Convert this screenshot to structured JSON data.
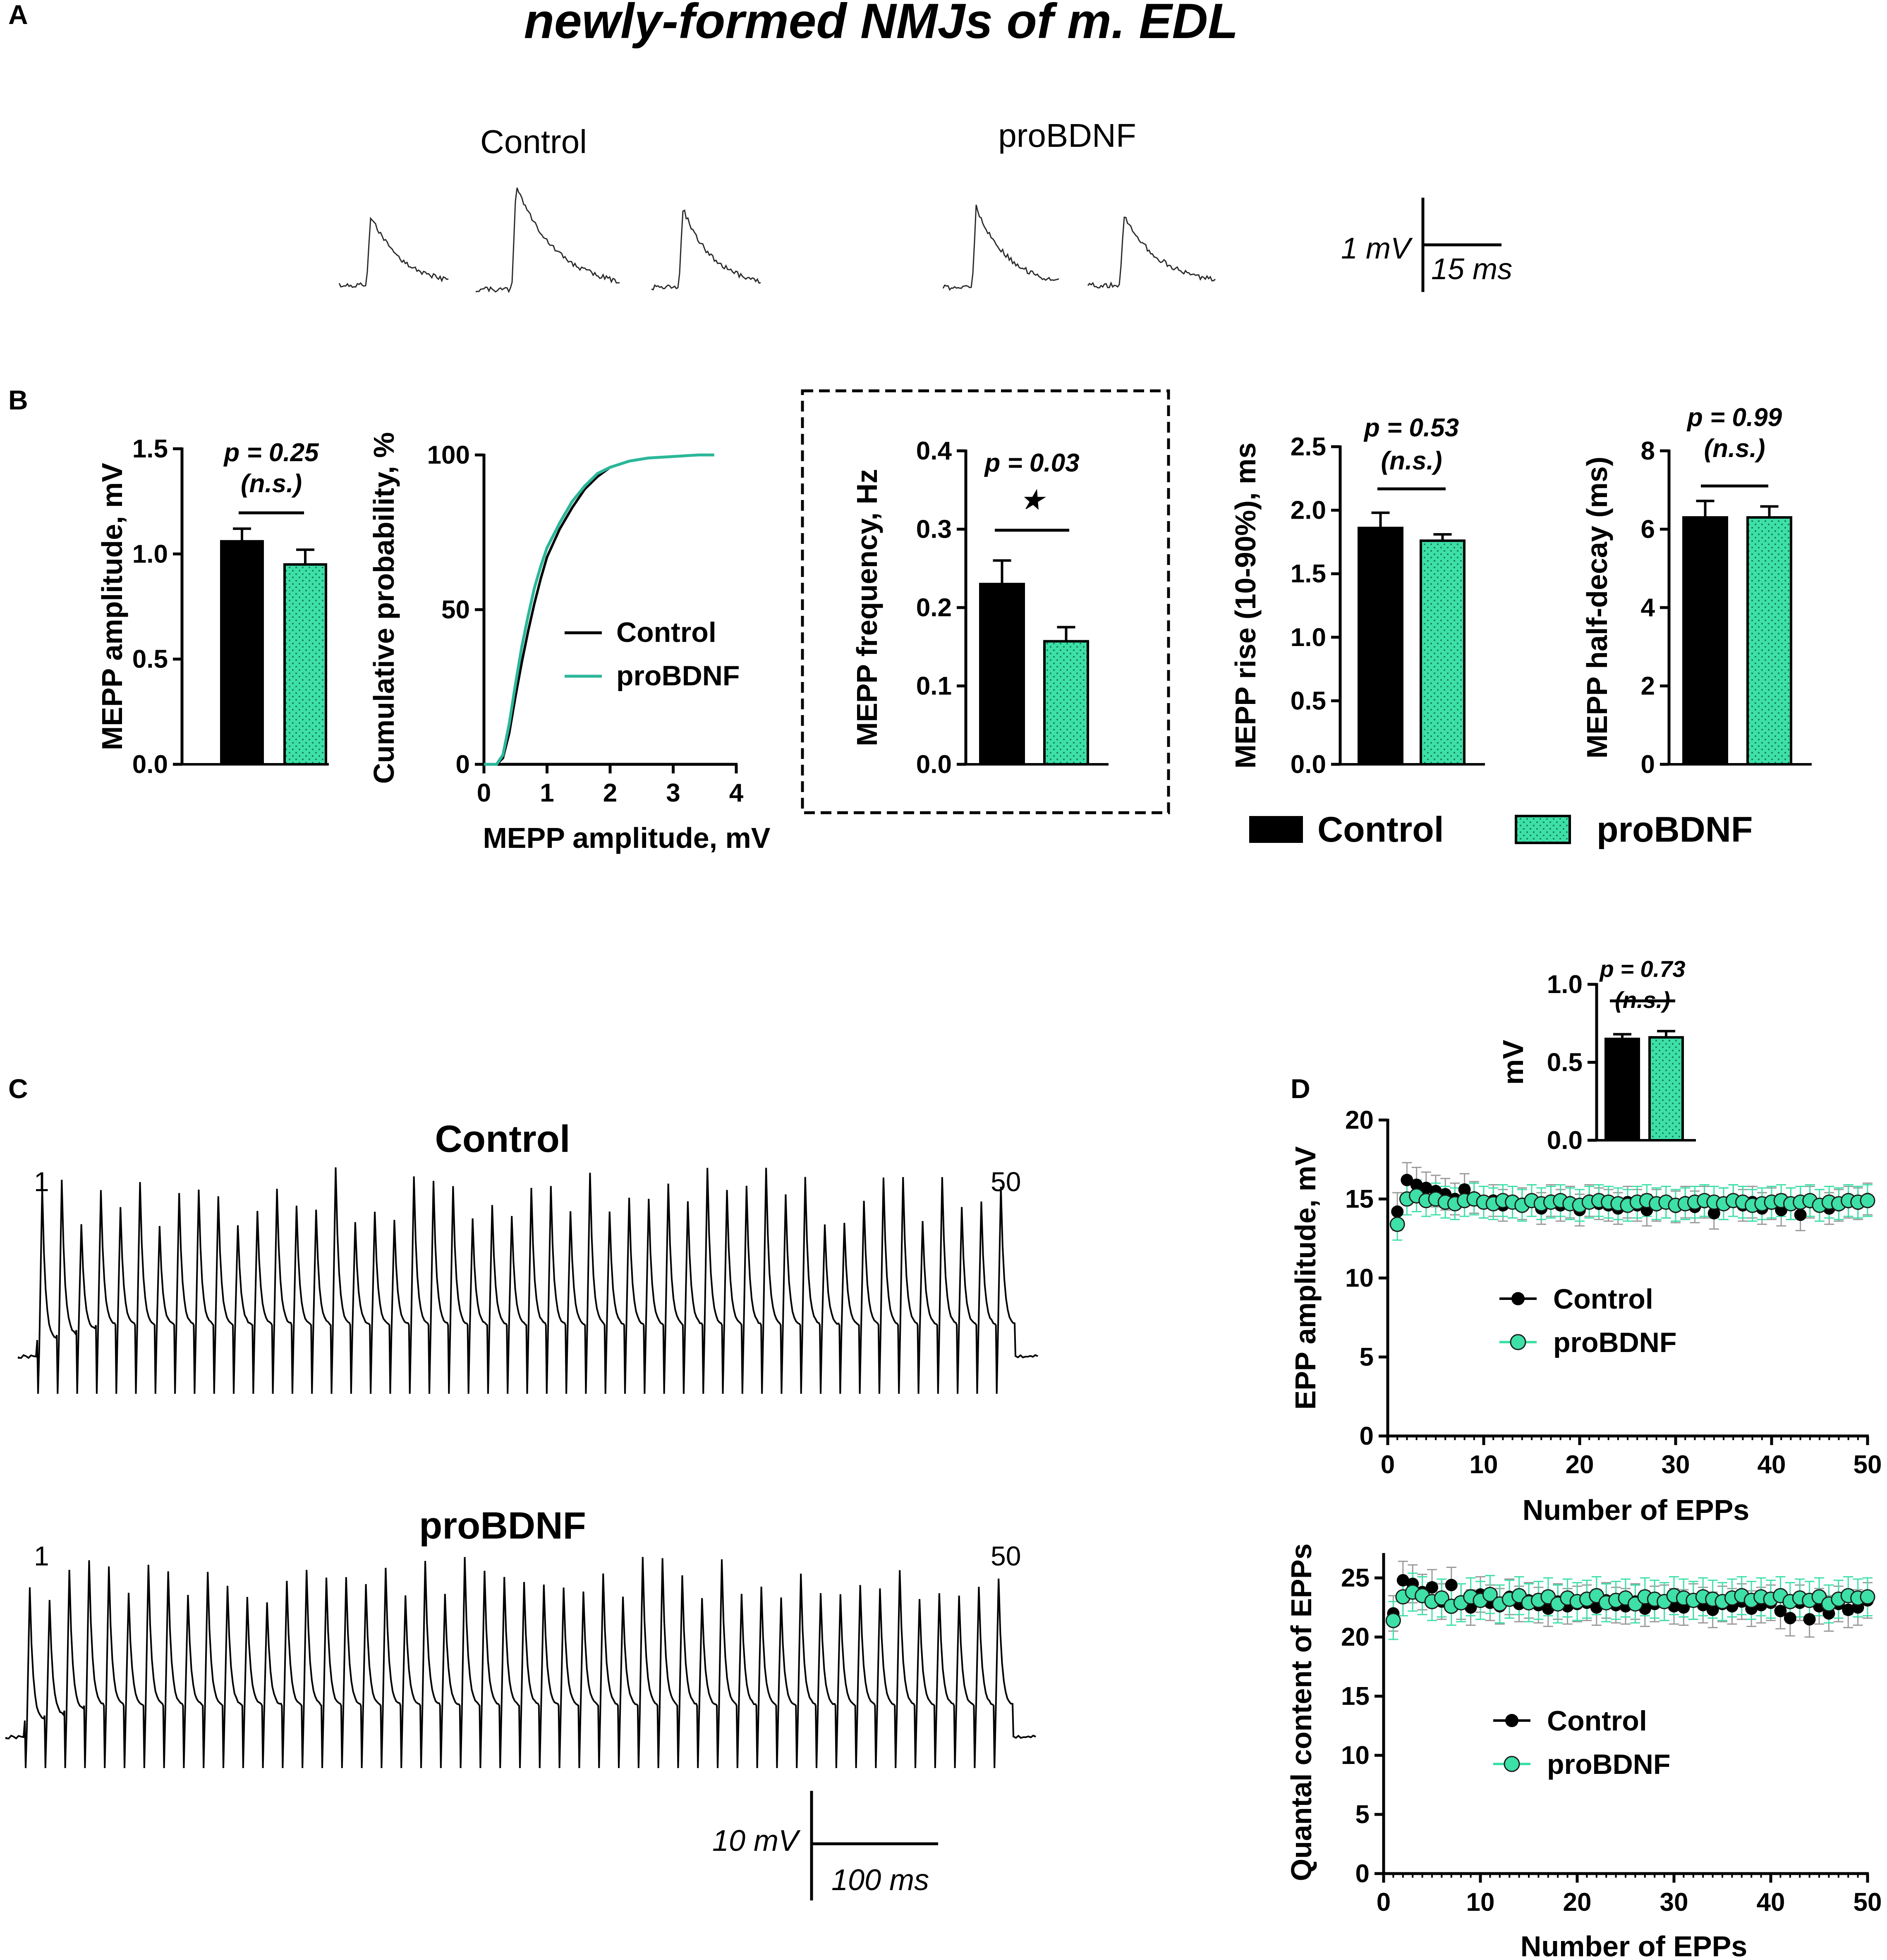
{
  "figure_title": "newly-formed NMJs of m. EDL",
  "panel_letters": [
    "A",
    "B",
    "C",
    "D"
  ],
  "colors": {
    "control": "#000000",
    "probdnf": "#3de0a6",
    "probdnf_line": "#2bb79a",
    "error_gray": "#9a9a9a"
  },
  "panel_a": {
    "labels": [
      "Control",
      "proBDNF"
    ],
    "scale_bar": {
      "y_label": "1 mV",
      "x_label": "15 ms"
    }
  },
  "panel_c": {
    "labels": [
      "Control",
      "proBDNF"
    ],
    "first_label": "1",
    "last_label": "50",
    "scale_bar": {
      "y_label": "10 mV",
      "x_label": "100 ms"
    }
  },
  "legend_b": {
    "control": "Control",
    "probdnf": "proBDNF"
  },
  "chart_data": [
    {
      "id": "mepp_amplitude",
      "type": "bar",
      "ylabel": "MEPP amplitude, mV",
      "ylim": [
        0,
        1.5
      ],
      "yticks": [
        "0.0",
        "0.5",
        "1.0",
        "1.5"
      ],
      "categories": [
        "Control",
        "proBDNF"
      ],
      "values": [
        1.06,
        0.95
      ],
      "errors": [
        0.06,
        0.07
      ],
      "p_value": "p = 0.25",
      "significance": "(n.s.)"
    },
    {
      "id": "cumulative_probability",
      "type": "line",
      "xlabel": "MEPP amplitude, mV",
      "ylabel": "Cumulative probability, %",
      "xlim": [
        0,
        4
      ],
      "ylim": [
        0,
        100
      ],
      "xticks": [
        "0",
        "1",
        "2",
        "3",
        "4"
      ],
      "yticks": [
        "0",
        "50",
        "100"
      ],
      "series": [
        {
          "name": "Control",
          "x": [
            0,
            0.2,
            0.3,
            0.4,
            0.5,
            0.6,
            0.7,
            0.8,
            0.9,
            1.0,
            1.2,
            1.4,
            1.6,
            1.8,
            2.0,
            2.3,
            2.6,
            3.0,
            3.4,
            3.65
          ],
          "y": [
            0,
            0,
            2,
            10,
            22,
            33,
            43,
            52,
            60,
            67,
            76,
            83,
            89,
            93,
            96,
            98,
            99,
            99.5,
            100,
            100
          ]
        },
        {
          "name": "proBDNF",
          "x": [
            0,
            0.2,
            0.3,
            0.4,
            0.5,
            0.6,
            0.7,
            0.8,
            0.9,
            1.0,
            1.2,
            1.4,
            1.6,
            1.8,
            2.0,
            2.3,
            2.6,
            3.0,
            3.4,
            3.65
          ],
          "y": [
            0,
            0,
            3,
            13,
            26,
            38,
            48,
            57,
            64,
            70,
            78,
            85,
            90,
            94,
            96,
            98,
            99,
            99.5,
            100,
            100
          ]
        }
      ],
      "legend": [
        "Control",
        "proBDNF"
      ]
    },
    {
      "id": "mepp_frequency",
      "type": "bar",
      "ylabel": "MEPP frequency, Hz",
      "ylim": [
        0,
        0.4
      ],
      "yticks": [
        "0.0",
        "0.1",
        "0.2",
        "0.3",
        "0.4"
      ],
      "categories": [
        "Control",
        "proBDNF"
      ],
      "values": [
        0.23,
        0.157
      ],
      "errors": [
        0.03,
        0.018
      ],
      "p_value": "p = 0.03",
      "significance": "★"
    },
    {
      "id": "mepp_rise",
      "type": "bar",
      "ylabel": "MEPP rise (10-90%), ms",
      "ylim": [
        0,
        2.5
      ],
      "yticks": [
        "0.0",
        "0.5",
        "1.0",
        "1.5",
        "2.0",
        "2.5"
      ],
      "categories": [
        "Control",
        "proBDNF"
      ],
      "values": [
        1.86,
        1.76
      ],
      "errors": [
        0.12,
        0.05
      ],
      "p_value": "p = 0.53",
      "significance": "(n.s.)"
    },
    {
      "id": "mepp_half_decay",
      "type": "bar",
      "ylabel": "MEPP half-decay (ms)",
      "ylim": [
        0,
        8
      ],
      "yticks": [
        "0",
        "2",
        "4",
        "6",
        "8"
      ],
      "categories": [
        "Control",
        "proBDNF"
      ],
      "values": [
        6.3,
        6.3
      ],
      "errors": [
        0.42,
        0.28
      ],
      "p_value": "p = 0.99",
      "significance": "(n.s.)"
    },
    {
      "id": "epp_amplitude",
      "type": "scatter",
      "xlabel": "Number of EPPs",
      "ylabel": "EPP amplitude, mV",
      "xlim": [
        0,
        50
      ],
      "ylim": [
        0,
        20
      ],
      "xticks": [
        "0",
        "10",
        "20",
        "30",
        "40",
        "50"
      ],
      "yticks": [
        "0",
        "5",
        "10",
        "15",
        "20"
      ],
      "series": [
        {
          "name": "Control",
          "y": [
            14.2,
            16.2,
            15.9,
            15.7,
            15.5,
            15.3,
            15.0,
            15.6,
            15.1,
            14.8,
            14.9,
            14.6,
            14.8,
            14.7,
            14.9,
            14.4,
            14.9,
            14.6,
            14.8,
            14.3,
            14.9,
            14.7,
            14.6,
            14.4,
            14.8,
            14.6,
            14.3,
            14.6,
            14.8,
            14.5,
            14.8,
            14.5,
            14.8,
            14.1,
            14.7,
            14.9,
            14.6,
            14.8,
            14.4,
            14.7,
            14.3,
            14.7,
            14.0,
            14.8,
            14.6,
            14.4,
            14.6,
            14.8,
            14.7,
            15.0
          ],
          "errors": [
            1.2,
            1.1,
            1.1,
            1.0,
            1.0,
            1.0,
            1.0,
            1.0,
            1.0,
            1.0,
            1.0,
            1.0,
            1.0,
            1.0,
            1.0,
            1.0,
            1.0,
            1.0,
            1.0,
            1.0,
            1.0,
            1.0,
            1.0,
            1.0,
            1.0,
            1.0,
            1.0,
            1.0,
            1.0,
            1.0,
            1.0,
            1.0,
            1.0,
            1.0,
            1.0,
            1.0,
            1.0,
            1.0,
            1.0,
            1.0,
            1.0,
            1.0,
            1.0,
            1.0,
            1.0,
            1.0,
            1.0,
            1.0,
            1.0,
            1.0
          ]
        },
        {
          "name": "proBDNF",
          "y": [
            13.4,
            15.0,
            15.2,
            14.9,
            15.0,
            14.8,
            14.7,
            14.9,
            15.0,
            14.8,
            14.7,
            14.9,
            14.8,
            14.6,
            14.9,
            14.7,
            14.8,
            14.9,
            14.7,
            14.6,
            14.8,
            14.9,
            14.8,
            14.7,
            14.6,
            14.8,
            14.9,
            14.7,
            14.8,
            14.6,
            14.7,
            14.8,
            14.9,
            14.8,
            14.7,
            14.9,
            14.8,
            14.6,
            14.7,
            14.8,
            14.9,
            14.7,
            14.8,
            14.9,
            14.6,
            14.8,
            14.7,
            14.9,
            14.8,
            14.9
          ],
          "errors": [
            1.0,
            1.0,
            1.0,
            1.0,
            1.0,
            1.0,
            1.0,
            1.0,
            1.0,
            1.0,
            1.0,
            1.0,
            1.0,
            1.0,
            1.0,
            1.0,
            1.0,
            1.0,
            1.0,
            1.0,
            1.0,
            1.0,
            1.0,
            1.0,
            1.0,
            1.0,
            1.0,
            1.0,
            1.0,
            1.0,
            1.0,
            1.0,
            1.0,
            1.0,
            1.0,
            1.0,
            1.0,
            1.0,
            1.0,
            1.0,
            1.0,
            1.0,
            1.0,
            1.0,
            1.0,
            1.0,
            1.0,
            1.0,
            1.0,
            1.0
          ]
        }
      ],
      "legend": [
        "Control",
        "proBDNF"
      ]
    },
    {
      "id": "epp_amplitude_inset",
      "type": "bar",
      "ylabel": "mV",
      "ylim": [
        0,
        1.0
      ],
      "yticks": [
        "0.0",
        "0.5",
        "1.0"
      ],
      "categories": [
        "Control",
        "proBDNF"
      ],
      "values": [
        0.65,
        0.66
      ],
      "errors": [
        0.03,
        0.04
      ],
      "p_value": "p = 0.73",
      "significance": "(n.s.)"
    },
    {
      "id": "quantal_content",
      "type": "scatter",
      "xlabel": "Number of EPPs",
      "ylabel": "Quantal content of EPPs",
      "xlim": [
        0,
        50
      ],
      "ylim": [
        0,
        27
      ],
      "xticks": [
        "0",
        "10",
        "20",
        "30",
        "40",
        "50"
      ],
      "yticks": [
        "0",
        "5",
        "10",
        "15",
        "20",
        "25"
      ],
      "series": [
        {
          "name": "Control",
          "y": [
            22.0,
            24.8,
            24.5,
            23.8,
            24.2,
            23.0,
            24.4,
            23.0,
            22.5,
            23.6,
            22.9,
            22.6,
            23.4,
            22.8,
            23.1,
            22.7,
            22.4,
            23.0,
            22.6,
            22.8,
            22.9,
            22.5,
            23.1,
            22.7,
            22.6,
            23.0,
            22.4,
            22.8,
            22.9,
            22.6,
            22.5,
            23.0,
            22.7,
            22.3,
            22.8,
            22.6,
            23.0,
            22.4,
            22.7,
            22.9,
            22.2,
            21.6,
            22.9,
            21.5,
            22.6,
            22.0,
            22.8,
            22.3,
            22.5,
            23.1
          ],
          "errors": [
            1.5,
            1.6,
            1.6,
            1.5,
            1.5,
            1.5,
            1.5,
            1.5,
            1.5,
            1.5,
            1.5,
            1.5,
            1.5,
            1.5,
            1.5,
            1.5,
            1.5,
            1.5,
            1.5,
            1.5,
            1.5,
            1.5,
            1.5,
            1.5,
            1.5,
            1.5,
            1.5,
            1.5,
            1.5,
            1.5,
            1.5,
            1.5,
            1.5,
            1.5,
            1.5,
            1.5,
            1.5,
            1.5,
            1.5,
            1.5,
            1.5,
            1.5,
            1.5,
            1.5,
            1.5,
            1.5,
            1.5,
            1.5,
            1.5,
            1.5
          ]
        },
        {
          "name": "proBDNF",
          "y": [
            21.4,
            23.4,
            23.8,
            23.5,
            23.0,
            23.3,
            22.6,
            22.9,
            23.4,
            23.1,
            23.6,
            22.8,
            23.2,
            23.5,
            22.9,
            23.1,
            23.4,
            22.8,
            23.3,
            23.0,
            23.2,
            23.5,
            22.9,
            23.1,
            23.3,
            22.8,
            23.4,
            23.2,
            23.0,
            23.5,
            23.3,
            23.1,
            23.4,
            23.2,
            23.0,
            23.3,
            23.5,
            23.1,
            23.4,
            23.2,
            23.5,
            23.0,
            23.3,
            23.1,
            23.4,
            22.8,
            23.2,
            23.5,
            23.3,
            23.4
          ],
          "errors": [
            1.6,
            1.6,
            1.6,
            1.6,
            1.6,
            1.6,
            1.6,
            1.6,
            1.6,
            1.6,
            1.6,
            1.6,
            1.6,
            1.6,
            1.6,
            1.6,
            1.6,
            1.6,
            1.6,
            1.6,
            1.6,
            1.6,
            1.6,
            1.6,
            1.6,
            1.6,
            1.6,
            1.6,
            1.6,
            1.6,
            1.6,
            1.6,
            1.6,
            1.6,
            1.6,
            1.6,
            1.6,
            1.6,
            1.6,
            1.6,
            1.6,
            1.6,
            1.6,
            1.6,
            1.6,
            1.6,
            1.6,
            1.6,
            1.6,
            1.6
          ]
        }
      ],
      "legend": [
        "Control",
        "proBDNF"
      ]
    }
  ]
}
